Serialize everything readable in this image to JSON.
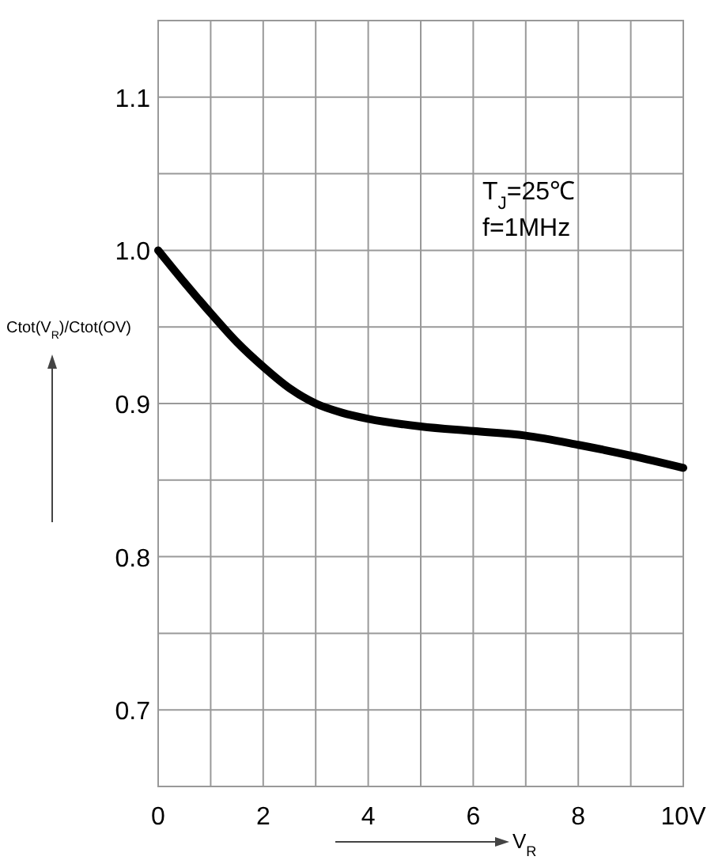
{
  "chart_data": {
    "type": "line",
    "xlabel": "V$_{R}$",
    "ylabel": "Ctot(V$_{R}$)/Ctot(OV)",
    "x": [
      0,
      0.5,
      1,
      1.5,
      2,
      2.5,
      3,
      3.5,
      4,
      5,
      6,
      7,
      8,
      9,
      10
    ],
    "series": [
      {
        "color": "#000000",
        "values": [
          1.0,
          0.979,
          0.959,
          0.94,
          0.924,
          0.91,
          0.9,
          0.894,
          0.89,
          0.885,
          0.882,
          0.879,
          0.873,
          0.866,
          0.858
        ]
      }
    ],
    "xlim": [
      0,
      10
    ],
    "ylim": [
      0.65,
      1.15
    ],
    "xticks": [
      0,
      {
        "value": 1,
        "label": null
      },
      2,
      {
        "value": 3,
        "label": null
      },
      4,
      {
        "value": 5,
        "label": null
      },
      6,
      {
        "value": 7,
        "label": null
      },
      8,
      {
        "value": 9,
        "label": null
      },
      {
        "value": 10,
        "label": "10V"
      }
    ],
    "yticks": [
      {
        "value": 0.65,
        "label": null
      },
      0.7,
      {
        "value": 0.75,
        "label": null
      },
      0.8,
      {
        "value": 0.85,
        "label": null
      },
      0.9,
      {
        "value": 0.95,
        "label": null
      },
      {
        "value": 1.0,
        "label": "1.0"
      },
      {
        "value": 1.05,
        "label": null
      },
      1.1,
      {
        "value": 1.15,
        "label": null
      }
    ],
    "grid": true,
    "marker": "none",
    "line_style": "solid",
    "annotations": [
      "T$_{J}$=25℃",
      "f=1MHz"
    ]
  }
}
